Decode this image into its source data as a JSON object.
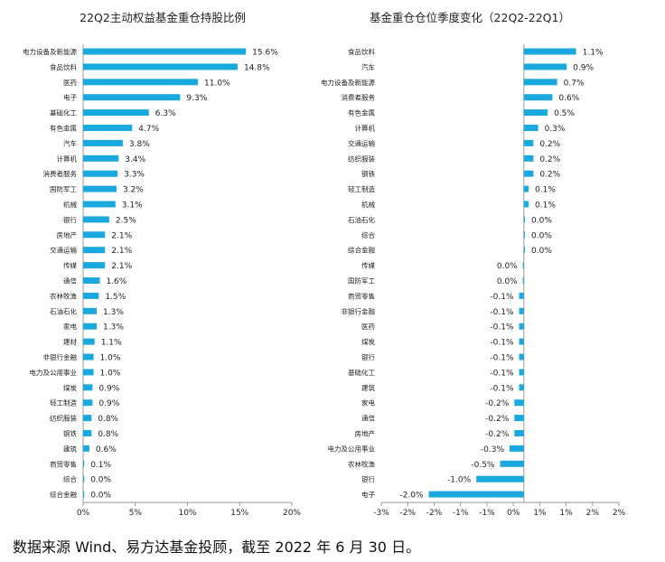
{
  "footnote": "数据来源 Wind、易方达基金投顾，截至 2022 年 6 月 30 日。",
  "colors": {
    "bar": "#1aa9df",
    "axis": "#999999",
    "text": "#222222"
  },
  "chart_data": [
    {
      "type": "bar",
      "orientation": "horizontal",
      "title": "22Q2主动权益基金重仓持股比例",
      "xlabel": "",
      "ylabel": "",
      "xlim": [
        0,
        20
      ],
      "xticks": [
        "0%",
        "5%",
        "10%",
        "15%",
        "20%"
      ],
      "grid": false,
      "categories": [
        "电力设备及新能源",
        "食品饮料",
        "医药",
        "电子",
        "基础化工",
        "有色金属",
        "汽车",
        "计算机",
        "消费者服务",
        "国防军工",
        "机械",
        "银行",
        "房地产",
        "交通运输",
        "传媒",
        "通信",
        "农林牧渔",
        "石油石化",
        "家电",
        "建材",
        "非银行金融",
        "电力及公用事业",
        "煤炭",
        "轻工制造",
        "纺织服装",
        "钢铁",
        "建筑",
        "商贸零售",
        "综合",
        "综合金融"
      ],
      "values": [
        15.6,
        14.8,
        11.0,
        9.3,
        6.3,
        4.7,
        3.8,
        3.4,
        3.3,
        3.2,
        3.1,
        2.5,
        2.1,
        2.1,
        2.1,
        1.6,
        1.5,
        1.3,
        1.3,
        1.1,
        1.0,
        1.0,
        0.9,
        0.9,
        0.8,
        0.8,
        0.6,
        0.1,
        0.0,
        0.0
      ],
      "labels": [
        "15.6%",
        "14.8%",
        "11.0%",
        "9.3%",
        "6.3%",
        "4.7%",
        "3.8%",
        "3.4%",
        "3.3%",
        "3.2%",
        "3.1%",
        "2.5%",
        "2.1%",
        "2.1%",
        "2.1%",
        "1.6%",
        "1.5%",
        "1.3%",
        "1.3%",
        "1.1%",
        "1.0%",
        "1.0%",
        "0.9%",
        "0.9%",
        "0.8%",
        "0.8%",
        "0.6%",
        "0.1%",
        "0.0%",
        "0.0%"
      ]
    },
    {
      "type": "bar",
      "orientation": "horizontal",
      "title": "基金重仓仓位季度变化（22Q2-22Q1）",
      "xlabel": "",
      "ylabel": "",
      "xlim": [
        -3,
        2
      ],
      "xticks": [
        "-3%",
        "-2%",
        "-2%",
        "-1%",
        "-1%",
        "0%",
        "1%",
        "1%",
        "2%",
        "2%"
      ],
      "grid": false,
      "categories": [
        "食品饮料",
        "汽车",
        "电力设备及新能源",
        "消费者服务",
        "有色金属",
        "计算机",
        "交通运输",
        "纺织服装",
        "钢铁",
        "轻工制造",
        "机械",
        "石油石化",
        "综合",
        "综合金融",
        "传媒",
        "国防军工",
        "商贸零售",
        "非银行金融",
        "医药",
        "煤炭",
        "银行",
        "基础化工",
        "建筑",
        "家电",
        "通信",
        "房地产",
        "电力及公用事业",
        "农林牧渔",
        "银行",
        "电子"
      ],
      "values": [
        1.1,
        0.9,
        0.7,
        0.6,
        0.5,
        0.3,
        0.2,
        0.2,
        0.2,
        0.1,
        0.1,
        0.0,
        0.0,
        0.0,
        -0.02,
        -0.02,
        -0.1,
        -0.1,
        -0.1,
        -0.1,
        -0.1,
        -0.1,
        -0.1,
        -0.2,
        -0.2,
        -0.2,
        -0.3,
        -0.5,
        -1.0,
        -2.0
      ],
      "labels": [
        "1.1%",
        "0.9%",
        "0.7%",
        "0.6%",
        "0.5%",
        "0.3%",
        "0.2%",
        "0.2%",
        "0.2%",
        "0.1%",
        "0.1%",
        "0.0%",
        "0.0%",
        "0.0%",
        "0.0%",
        "0.0%",
        "-0.1%",
        "-0.1%",
        "-0.1%",
        "-0.1%",
        "-0.1%",
        "-0.1%",
        "-0.1%",
        "-0.2%",
        "-0.2%",
        "-0.2%",
        "-0.3%",
        "-0.5%",
        "-1.0%",
        "-2.0%"
      ]
    }
  ]
}
